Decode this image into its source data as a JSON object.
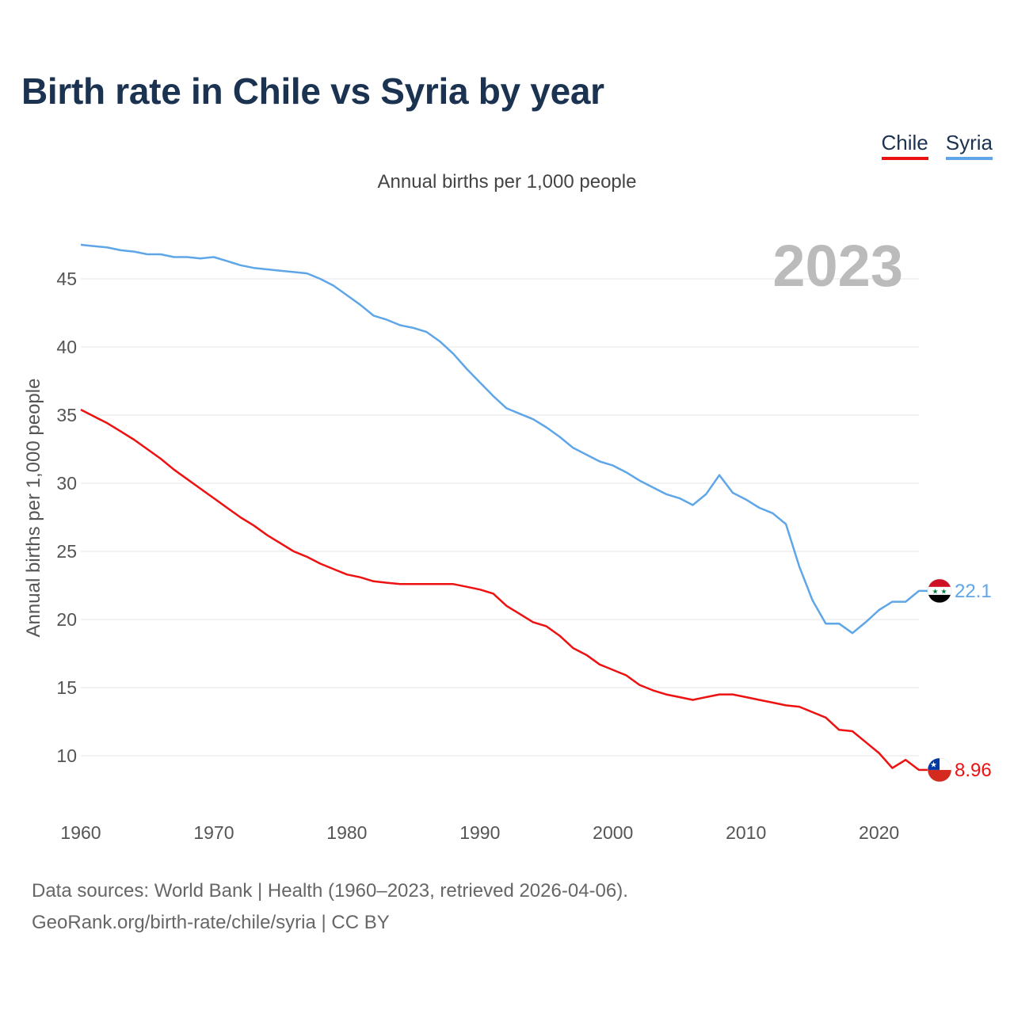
{
  "title": "Birth rate in Chile vs Syria by year",
  "legend": {
    "chile": "Chile",
    "syria": "Syria"
  },
  "subtitle": "Annual births per 1,000 people",
  "footer": {
    "line1": "Data sources: World Bank | Health (1960–2023, retrieved 2026-04-06).",
    "line2": "GeoRank.org/birth-rate/chile/syria | CC BY"
  },
  "colors": {
    "chile": "#ee1111",
    "syria": "#5ea6e8",
    "title": "#1b3350",
    "year_label": "#bbbbbb"
  },
  "chart_data": {
    "type": "line",
    "title": "Birth rate in Chile vs Syria by year",
    "ylabel": "Annual births per 1,000 people",
    "xlabel": "",
    "year_label": "2023",
    "xlim": [
      1960,
      2023
    ],
    "ylim": [
      6.5,
      47.5
    ],
    "x_ticks": [
      1960,
      1970,
      1980,
      1990,
      2000,
      2010,
      2020
    ],
    "y_ticks": [
      10,
      15,
      20,
      25,
      30,
      35,
      40,
      45
    ],
    "grid": true,
    "legend_position": "top-right",
    "x": [
      1960,
      1961,
      1962,
      1963,
      1964,
      1965,
      1966,
      1967,
      1968,
      1969,
      1970,
      1971,
      1972,
      1973,
      1974,
      1975,
      1976,
      1977,
      1978,
      1979,
      1980,
      1981,
      1982,
      1983,
      1984,
      1985,
      1986,
      1987,
      1988,
      1989,
      1990,
      1991,
      1992,
      1993,
      1994,
      1995,
      1996,
      1997,
      1998,
      1999,
      2000,
      2001,
      2002,
      2003,
      2004,
      2005,
      2006,
      2007,
      2008,
      2009,
      2010,
      2011,
      2012,
      2013,
      2014,
      2015,
      2016,
      2017,
      2018,
      2019,
      2020,
      2021,
      2022,
      2023
    ],
    "series": [
      {
        "name": "Chile",
        "end_label": "8.96",
        "values": [
          35.4,
          34.9,
          34.4,
          33.8,
          33.2,
          32.5,
          31.8,
          31.0,
          30.3,
          29.6,
          28.9,
          28.2,
          27.5,
          26.9,
          26.2,
          25.6,
          25.0,
          24.6,
          24.1,
          23.7,
          23.3,
          23.1,
          22.8,
          22.7,
          22.6,
          22.6,
          22.6,
          22.6,
          22.6,
          22.4,
          22.2,
          21.9,
          21.0,
          20.4,
          19.8,
          19.5,
          18.8,
          17.9,
          17.4,
          16.7,
          16.3,
          15.9,
          15.2,
          14.8,
          14.5,
          14.3,
          14.1,
          14.3,
          14.5,
          14.5,
          14.3,
          14.1,
          13.9,
          13.7,
          13.6,
          13.2,
          12.8,
          11.9,
          11.8,
          11.0,
          10.2,
          9.1,
          9.7,
          8.96
        ]
      },
      {
        "name": "Syria",
        "end_label": "22.1",
        "values": [
          47.5,
          47.4,
          47.3,
          47.1,
          47.0,
          46.8,
          46.8,
          46.6,
          46.6,
          46.5,
          46.6,
          46.3,
          46.0,
          45.8,
          45.7,
          45.6,
          45.5,
          45.4,
          45.0,
          44.5,
          43.8,
          43.1,
          42.3,
          42.0,
          41.6,
          41.4,
          41.1,
          40.4,
          39.5,
          38.4,
          37.4,
          36.4,
          35.5,
          35.1,
          34.7,
          34.1,
          33.4,
          32.6,
          32.1,
          31.6,
          31.3,
          30.8,
          30.2,
          29.7,
          29.2,
          28.9,
          28.4,
          29.2,
          30.6,
          29.3,
          28.8,
          28.2,
          27.8,
          27.0,
          23.9,
          21.4,
          19.7,
          19.7,
          19.0,
          19.8,
          20.7,
          21.3,
          21.3,
          22.1
        ]
      }
    ]
  }
}
